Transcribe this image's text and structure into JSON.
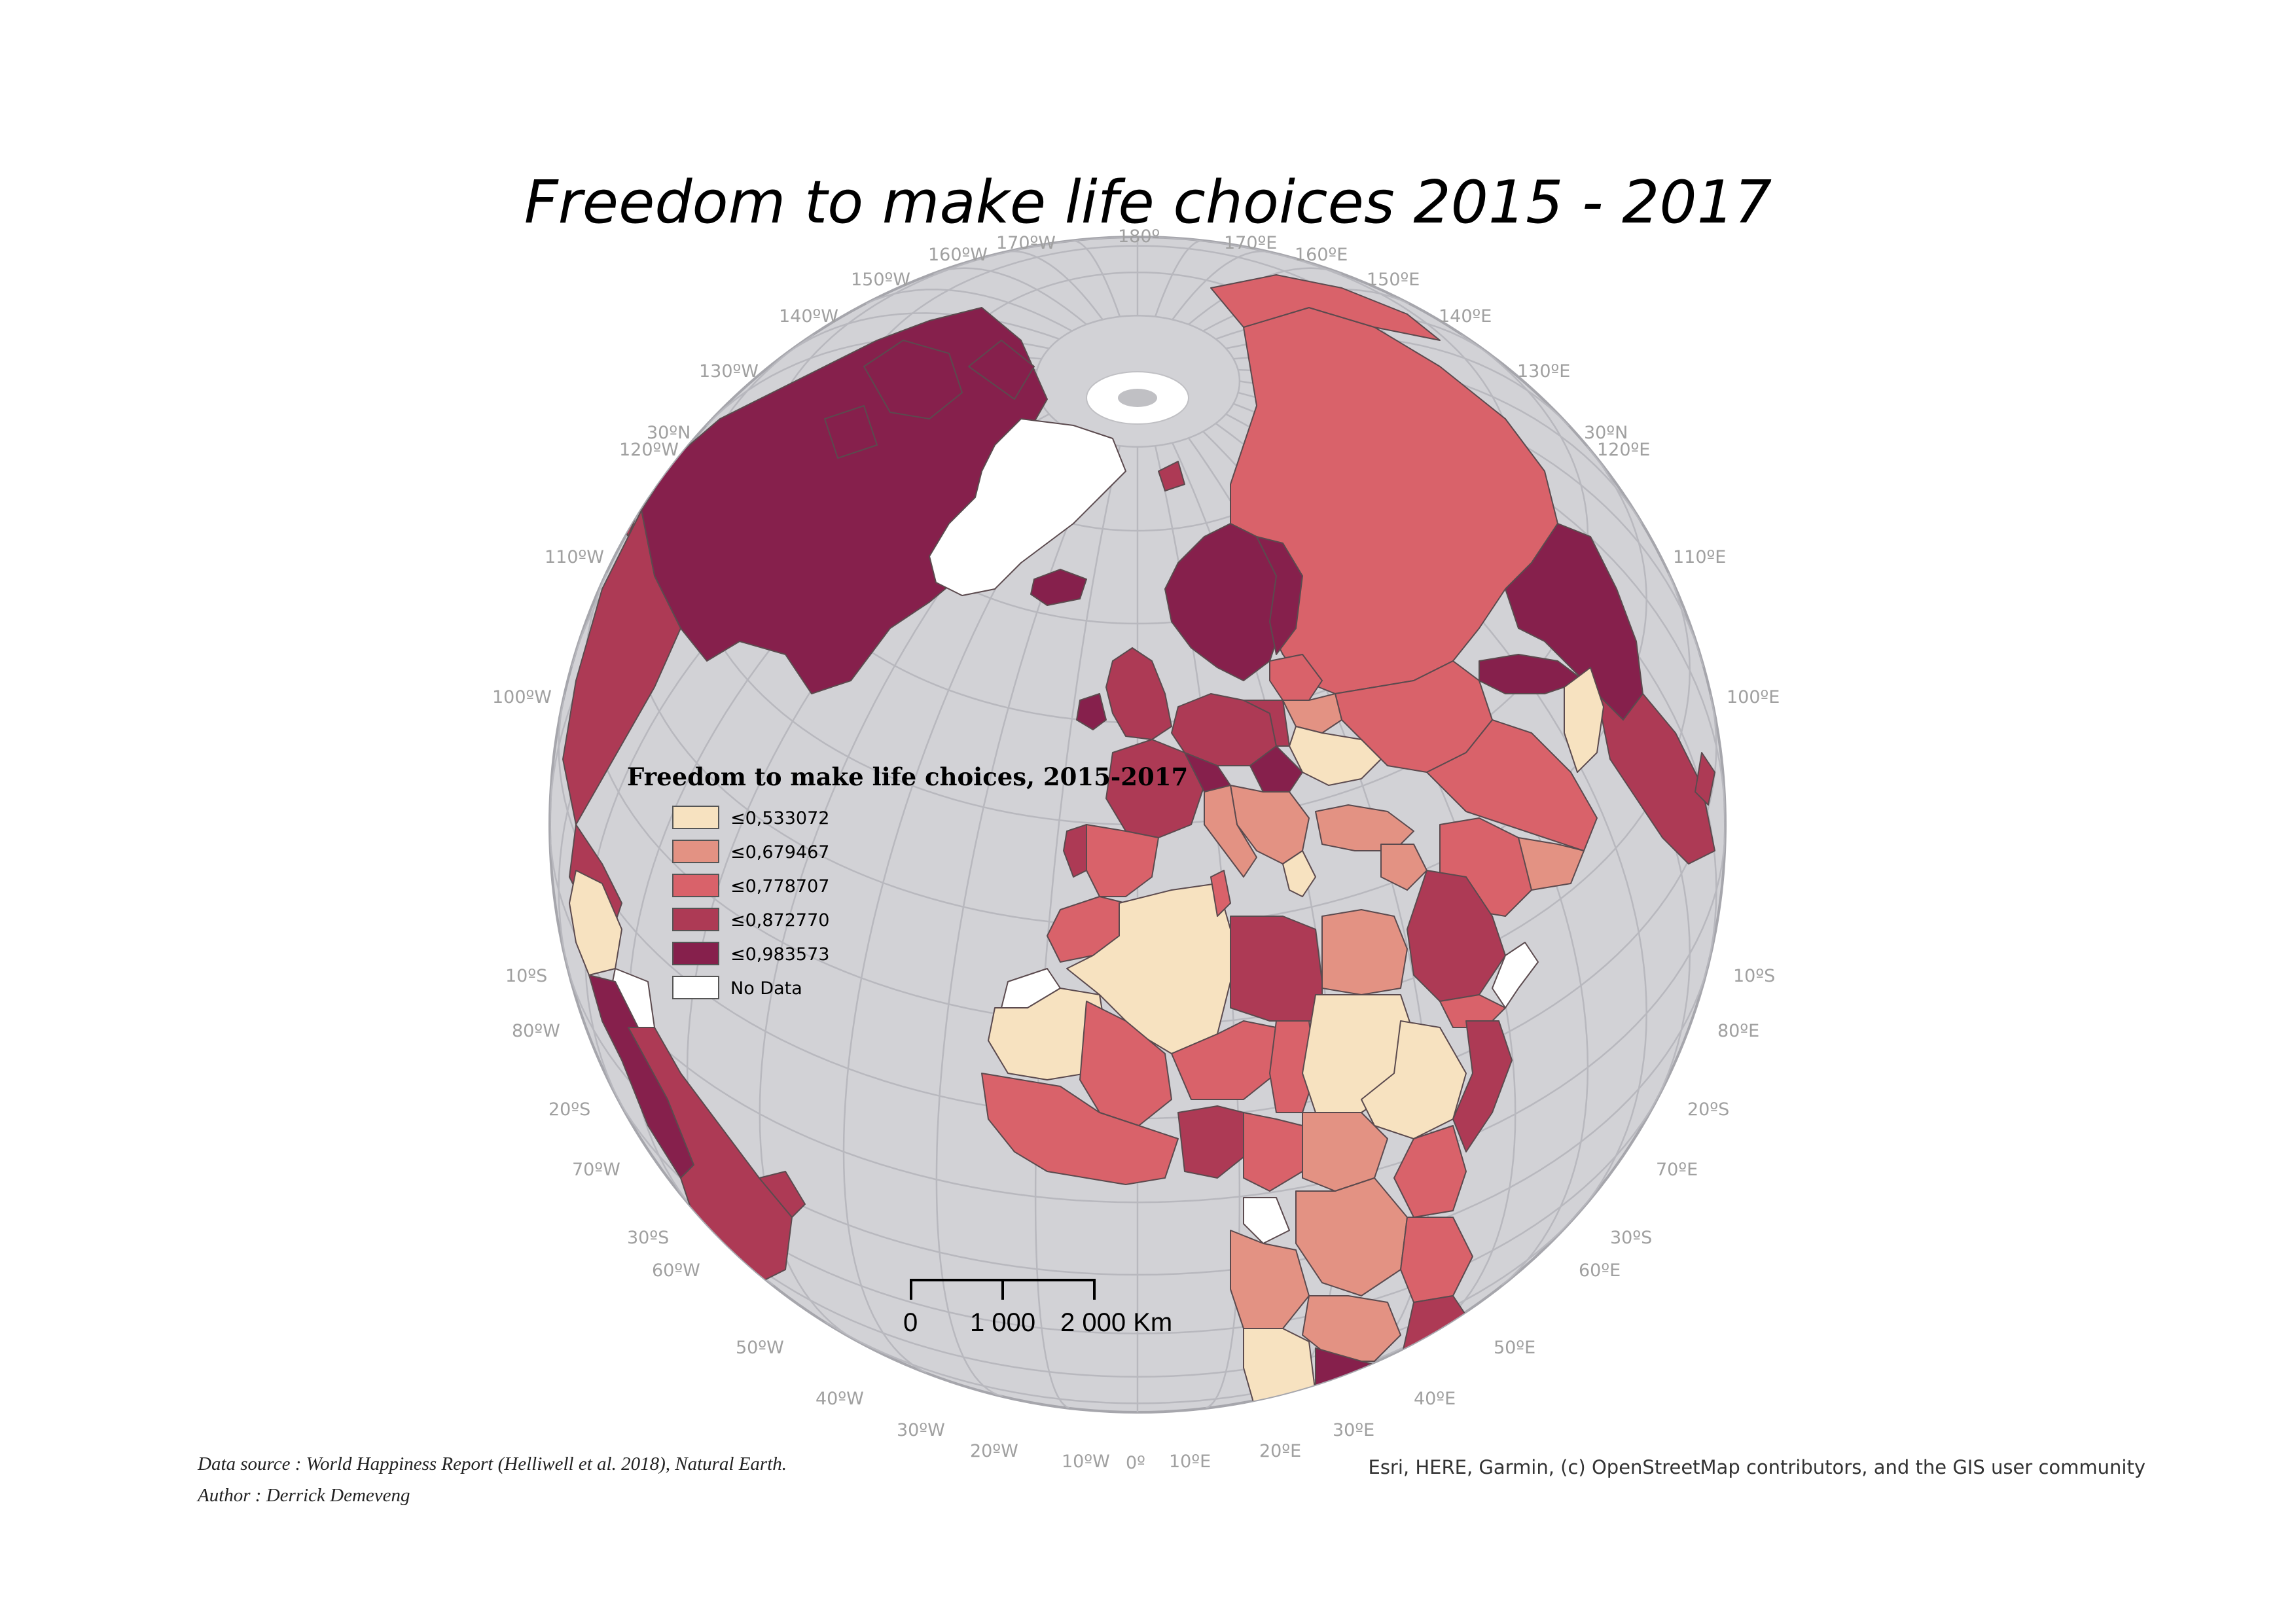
{
  "title": "Freedom to make life choices 2015 - 2017",
  "legend": {
    "title": "Freedom to make life choices, 2015-2017",
    "classes": [
      {
        "label": "≤0,533072",
        "color": "#f7e2c0"
      },
      {
        "label": "≤0,679467",
        "color": "#e39283"
      },
      {
        "label": "≤0,778707",
        "color": "#d9626a"
      },
      {
        "label": "≤0,872770",
        "color": "#ad3a55"
      },
      {
        "label": "≤0,983573",
        "color": "#86204c"
      },
      {
        "label": "No Data",
        "color": "#ffffff"
      }
    ]
  },
  "scale_bar": {
    "labels": [
      "0",
      "1 000",
      "2 000 Km"
    ]
  },
  "graticule_labels": {
    "top": [
      "160ºW",
      "170ºW",
      "180º",
      "170ºE",
      "160ºE",
      "150ºW",
      "150ºE",
      "140ºW",
      "140ºE",
      "130ºW",
      "130ºE"
    ],
    "left": [
      "30ºN",
      "120ºW",
      "110ºW",
      "100ºW",
      "10ºS",
      "80ºW",
      "20ºS",
      "70ºW",
      "30ºS",
      "60ºW",
      "50ºW",
      "40ºW"
    ],
    "right": [
      "30ºN",
      "120ºE",
      "110ºE",
      "100ºE",
      "10ºS",
      "80ºE",
      "20ºS",
      "70ºE",
      "30ºS",
      "60ºE",
      "50ºE",
      "40ºE"
    ],
    "bottom": [
      "30ºW",
      "20ºW",
      "10ºW",
      "0º",
      "10ºE",
      "20ºE",
      "30ºE"
    ]
  },
  "footer": {
    "source": "Data source : World Happiness Report (Helliwell et al. 2018), Natural Earth.",
    "author": "Author : Derrick Demeveng",
    "attribution": "Esri, HERE, Garmin, (c) OpenStreetMap contributors, and the GIS user community"
  },
  "colors": {
    "ocean": "#d2d2d6",
    "graticule": "#b8b8be",
    "globe_edge": "#a6a6ac"
  }
}
